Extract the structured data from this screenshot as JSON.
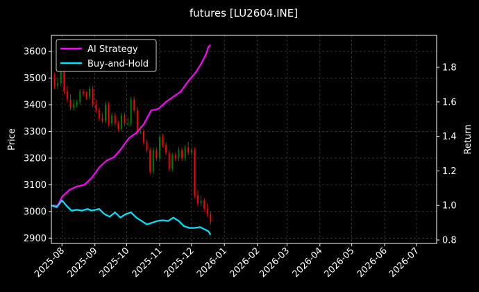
{
  "chart_data": {
    "type": "line",
    "title": "futures [LU2604.INE]",
    "ylabel": "Price",
    "y2label": "Return",
    "ylim": [
      2880,
      3660
    ],
    "y2lim": [
      0.78,
      1.985
    ],
    "xlim": [
      "2025-07-22",
      "2026-07-20"
    ],
    "grid": true,
    "legend_position": "top-left",
    "x_ticks": [
      "2025-08",
      "2025-09",
      "2025-10",
      "2025-11",
      "2025-12",
      "2026-01",
      "2026-02",
      "2026-03",
      "2026-04",
      "2026-05",
      "2026-06",
      "2026-07"
    ],
    "y_ticks": [
      2900,
      3000,
      3100,
      3200,
      3300,
      3400,
      3500,
      3600
    ],
    "y2_ticks": [
      "0.8",
      "1.0",
      "1.2",
      "1.4",
      "1.6",
      "1.8"
    ],
    "series": [
      {
        "name": "AI Strategy",
        "color": "#ff00ff",
        "axis": "right",
        "x": [
          "2025-07-22",
          "2025-07-28",
          "2025-08-01",
          "2025-08-08",
          "2025-08-15",
          "2025-08-22",
          "2025-08-29",
          "2025-09-05",
          "2025-09-12",
          "2025-09-19",
          "2025-09-26",
          "2025-10-03",
          "2025-10-10",
          "2025-10-17",
          "2025-10-24",
          "2025-10-31",
          "2025-11-07",
          "2025-11-14",
          "2025-11-21",
          "2025-11-28",
          "2025-12-05",
          "2025-12-10",
          "2025-12-15",
          "2025-12-17",
          "2025-12-19"
        ],
        "values": [
          1.0,
          1.0,
          1.05,
          1.09,
          1.11,
          1.12,
          1.16,
          1.22,
          1.26,
          1.28,
          1.33,
          1.39,
          1.42,
          1.47,
          1.55,
          1.56,
          1.6,
          1.63,
          1.66,
          1.72,
          1.77,
          1.82,
          1.88,
          1.92,
          1.93
        ]
      },
      {
        "name": "Buy-and-Hold",
        "color": "#00e5ff",
        "axis": "right",
        "x": [
          "2025-07-22",
          "2025-07-27",
          "2025-08-01",
          "2025-08-05",
          "2025-08-10",
          "2025-08-15",
          "2025-08-20",
          "2025-08-25",
          "2025-08-29",
          "2025-09-05",
          "2025-09-10",
          "2025-09-15",
          "2025-09-20",
          "2025-09-25",
          "2025-09-30",
          "2025-10-05",
          "2025-10-10",
          "2025-10-15",
          "2025-10-20",
          "2025-10-25",
          "2025-10-30",
          "2025-11-04",
          "2025-11-09",
          "2025-11-14",
          "2025-11-19",
          "2025-11-24",
          "2025-11-29",
          "2025-12-04",
          "2025-12-09",
          "2025-12-14",
          "2025-12-17",
          "2025-12-19"
        ],
        "values": [
          1.0,
          0.99,
          1.03,
          1.0,
          0.97,
          0.975,
          0.97,
          0.98,
          0.97,
          0.98,
          0.95,
          0.935,
          0.96,
          0.93,
          0.95,
          0.96,
          0.93,
          0.91,
          0.89,
          0.9,
          0.91,
          0.915,
          0.91,
          0.93,
          0.91,
          0.88,
          0.87,
          0.87,
          0.875,
          0.86,
          0.85,
          0.83
        ]
      }
    ],
    "candles": {
      "up_color": "#008000",
      "down_color": "#ff0000",
      "x": [
        "2025-07-25",
        "2025-07-28",
        "2025-07-31",
        "2025-08-03",
        "2025-08-06",
        "2025-08-09",
        "2025-08-12",
        "2025-08-15",
        "2025-08-18",
        "2025-08-21",
        "2025-08-24",
        "2025-08-27",
        "2025-08-30",
        "2025-09-02",
        "2025-09-05",
        "2025-09-08",
        "2025-09-11",
        "2025-09-14",
        "2025-09-17",
        "2025-09-20",
        "2025-09-23",
        "2025-09-26",
        "2025-09-29",
        "2025-10-02",
        "2025-10-05",
        "2025-10-08",
        "2025-10-11",
        "2025-10-14",
        "2025-10-17",
        "2025-10-20",
        "2025-10-23",
        "2025-10-26",
        "2025-10-29",
        "2025-11-01",
        "2025-11-04",
        "2025-11-07",
        "2025-11-10",
        "2025-11-13",
        "2025-11-16",
        "2025-11-19",
        "2025-11-22",
        "2025-11-25",
        "2025-11-28",
        "2025-12-01",
        "2025-12-04",
        "2025-12-07",
        "2025-12-10",
        "2025-12-13",
        "2025-12-16",
        "2025-12-19"
      ],
      "open": [
        3500,
        3470,
        3480,
        3530,
        3450,
        3420,
        3390,
        3400,
        3410,
        3450,
        3440,
        3430,
        3460,
        3400,
        3380,
        3350,
        3340,
        3400,
        3330,
        3360,
        3330,
        3310,
        3360,
        3330,
        3330,
        3420,
        3380,
        3300,
        3300,
        3260,
        3230,
        3150,
        3230,
        3200,
        3280,
        3250,
        3220,
        3160,
        3210,
        3200,
        3230,
        3200,
        3240,
        3220,
        3230,
        3060,
        3030,
        3040,
        3010,
        2990
      ],
      "close": [
        3470,
        3480,
        3530,
        3450,
        3420,
        3390,
        3400,
        3410,
        3450,
        3440,
        3430,
        3460,
        3400,
        3380,
        3350,
        3340,
        3400,
        3330,
        3360,
        3330,
        3310,
        3360,
        3330,
        3330,
        3420,
        3380,
        3300,
        3300,
        3260,
        3230,
        3150,
        3230,
        3200,
        3280,
        3250,
        3220,
        3160,
        3210,
        3200,
        3230,
        3200,
        3240,
        3220,
        3230,
        3060,
        3030,
        3040,
        3010,
        2990,
        2960
      ],
      "high": [
        3520,
        3500,
        3540,
        3540,
        3470,
        3440,
        3420,
        3420,
        3460,
        3460,
        3450,
        3470,
        3470,
        3420,
        3390,
        3370,
        3410,
        3410,
        3370,
        3370,
        3340,
        3370,
        3370,
        3350,
        3430,
        3430,
        3390,
        3320,
        3310,
        3270,
        3240,
        3240,
        3240,
        3290,
        3290,
        3260,
        3230,
        3220,
        3220,
        3240,
        3240,
        3250,
        3260,
        3240,
        3240,
        3080,
        3060,
        3050,
        3030,
        3000
      ],
      "low": [
        3460,
        3460,
        3470,
        3440,
        3410,
        3380,
        3380,
        3390,
        3400,
        3430,
        3420,
        3420,
        3390,
        3370,
        3340,
        3330,
        3330,
        3320,
        3320,
        3320,
        3300,
        3300,
        3320,
        3320,
        3320,
        3370,
        3290,
        3290,
        3250,
        3220,
        3140,
        3140,
        3190,
        3190,
        3240,
        3210,
        3150,
        3150,
        3190,
        3190,
        3190,
        3190,
        3210,
        3210,
        3050,
        3020,
        3020,
        3000,
        2980,
        2950
      ]
    }
  }
}
